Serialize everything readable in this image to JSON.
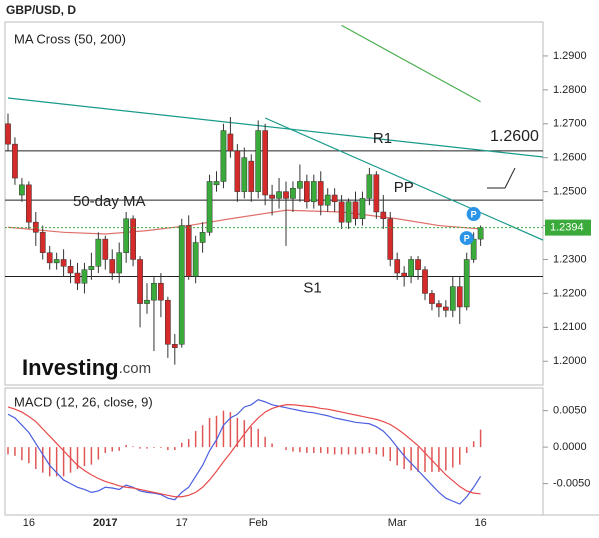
{
  "header": {
    "title": "GBP/USD, D"
  },
  "logo": {
    "name": "Investing",
    "suffix": ".com"
  },
  "chart_data": [
    {
      "type": "candlestick",
      "title": "MA Cross (50, 200)",
      "up_color": "#3aab3a",
      "down_color": "#d42a2a",
      "open": [
        1.27,
        1.264,
        1.249,
        1.252,
        1.241,
        1.238,
        1.232,
        1.229,
        1.23,
        1.228,
        1.226,
        1.223,
        1.227,
        1.228,
        1.236,
        1.23,
        1.226,
        1.232,
        1.242,
        1.23,
        1.217,
        1.218,
        1.223,
        1.218,
        1.205,
        1.205,
        1.24,
        1.225,
        1.235,
        1.238,
        1.252,
        1.253,
        1.267,
        1.262,
        1.25,
        1.259,
        1.25,
        1.268,
        1.249,
        1.248,
        1.25,
        1.248,
        1.251,
        1.253,
        1.247,
        1.253,
        1.246,
        1.249,
        1.247,
        1.241,
        1.247,
        1.242,
        1.248,
        1.255,
        1.244,
        1.242,
        1.23,
        1.226,
        1.225,
        1.23,
        1.227,
        1.22,
        1.217,
        1.216,
        1.215,
        1.222,
        1.216,
        1.23,
        1.236
      ],
      "high": [
        1.273,
        1.266,
        1.254,
        1.253,
        1.244,
        1.24,
        1.234,
        1.232,
        1.233,
        1.23,
        1.229,
        1.229,
        1.232,
        1.238,
        1.237,
        1.233,
        1.235,
        1.244,
        1.243,
        1.231,
        1.223,
        1.225,
        1.226,
        1.219,
        1.208,
        1.242,
        1.243,
        1.237,
        1.241,
        1.255,
        1.256,
        1.27,
        1.272,
        1.264,
        1.263,
        1.261,
        1.271,
        1.27,
        1.252,
        1.254,
        1.253,
        1.253,
        1.258,
        1.255,
        1.255,
        1.256,
        1.251,
        1.251,
        1.249,
        1.248,
        1.25,
        1.25,
        1.257,
        1.256,
        1.249,
        1.244,
        1.232,
        1.228,
        1.231,
        1.231,
        1.228,
        1.221,
        1.218,
        1.218,
        1.225,
        1.225,
        1.232,
        1.238,
        1.24
      ],
      "low": [
        1.262,
        1.252,
        1.247,
        1.239,
        1.234,
        1.23,
        1.227,
        1.227,
        1.225,
        1.223,
        1.221,
        1.22,
        1.224,
        1.226,
        1.227,
        1.224,
        1.223,
        1.229,
        1.228,
        1.21,
        1.214,
        1.203,
        1.213,
        1.201,
        1.199,
        1.204,
        1.224,
        1.223,
        1.232,
        1.237,
        1.25,
        1.251,
        1.26,
        1.247,
        1.248,
        1.247,
        1.248,
        1.246,
        1.243,
        1.245,
        1.234,
        1.244,
        1.247,
        1.245,
        1.245,
        1.243,
        1.244,
        1.244,
        1.239,
        1.239,
        1.24,
        1.24,
        1.246,
        1.242,
        1.239,
        1.228,
        1.224,
        1.222,
        1.223,
        1.224,
        1.218,
        1.215,
        1.213,
        1.213,
        1.213,
        1.211,
        1.215,
        1.229,
        1.234
      ],
      "close": [
        1.264,
        1.254,
        1.252,
        1.241,
        1.238,
        1.232,
        1.229,
        1.23,
        1.228,
        1.226,
        1.223,
        1.227,
        1.228,
        1.236,
        1.23,
        1.226,
        1.232,
        1.242,
        1.23,
        1.217,
        1.218,
        1.223,
        1.218,
        1.205,
        1.204,
        1.24,
        1.225,
        1.235,
        1.238,
        1.253,
        1.253,
        1.268,
        1.262,
        1.25,
        1.26,
        1.25,
        1.268,
        1.249,
        1.248,
        1.25,
        1.248,
        1.251,
        1.253,
        1.247,
        1.253,
        1.246,
        1.249,
        1.247,
        1.241,
        1.247,
        1.242,
        1.248,
        1.255,
        1.244,
        1.242,
        1.23,
        1.226,
        1.225,
        1.23,
        1.227,
        1.22,
        1.217,
        1.216,
        1.215,
        1.222,
        1.216,
        1.23,
        1.236,
        1.2394
      ],
      "lines": [
        {
          "color": "#e0706a",
          "x": [
            0,
            8,
            14,
            20,
            26,
            32,
            40,
            48,
            56,
            62,
            68
          ],
          "values": [
            1.2395,
            1.238,
            1.2375,
            1.2385,
            1.24,
            1.242,
            1.2445,
            1.244,
            1.242,
            1.24,
            1.239
          ]
        },
        {
          "color": "#4caf50",
          "x": [
            48,
            68
          ],
          "values": [
            1.299,
            1.2765
          ]
        },
        {
          "color": "#1a9a8a",
          "x": [
            0,
            77
          ],
          "values": [
            1.2776,
            1.2602
          ]
        },
        {
          "color": "#1a9a8a",
          "x": [
            37,
            77
          ],
          "values": [
            1.2717,
            1.2357
          ]
        }
      ],
      "levels": [
        {
          "label": "R1",
          "value": 1.262
        },
        {
          "label": "PP",
          "value": 1.2475
        },
        {
          "label": "S1",
          "value": 1.225
        }
      ],
      "annotations": [
        "50-day MA",
        "1.2600"
      ],
      "markers": [
        {
          "label": "P",
          "x": 67,
          "value": 1.2434
        },
        {
          "label": "P",
          "x": 66,
          "value": 1.2363
        }
      ],
      "ylim": [
        1.193,
        1.3
      ],
      "yticks": [
        {
          "value": 1.2,
          "label": "1.2000"
        },
        {
          "value": 1.21,
          "label": "1.2100"
        },
        {
          "value": 1.22,
          "label": "1.2200"
        },
        {
          "value": 1.23,
          "label": "1.2300"
        },
        {
          "value": 1.24,
          "label": "1.2400"
        },
        {
          "value": 1.25,
          "label": "1.2500"
        },
        {
          "value": 1.26,
          "label": "1.2600"
        },
        {
          "value": 1.27,
          "label": "1.2700"
        },
        {
          "value": 1.28,
          "label": "1.2800"
        },
        {
          "value": 1.29,
          "label": "1.2900"
        }
      ]
    },
    {
      "type": "macd",
      "title": "MACD (12, 26, close, 9)",
      "categories": [
        null,
        null,
        null,
        "16",
        null,
        null,
        null,
        null,
        null,
        null,
        null,
        null,
        null,
        null,
        "2017",
        null,
        null,
        null,
        null,
        null,
        null,
        null,
        null,
        null,
        null,
        "17",
        null,
        null,
        null,
        null,
        null,
        null,
        null,
        null,
        null,
        null,
        "Feb",
        null,
        null,
        null,
        null,
        null,
        null,
        null,
        null,
        null,
        null,
        null,
        null,
        null,
        null,
        null,
        null,
        null,
        null,
        null,
        "Mar",
        null,
        null,
        null,
        null,
        null,
        null,
        null,
        null,
        null,
        null,
        null,
        "16"
      ],
      "series": [
        {
          "color": "#4a5ee0",
          "values": [
            0.0045,
            0.004,
            0.003,
            0.002,
            0.0005,
            -0.001,
            -0.0025,
            -0.0035,
            -0.0045,
            -0.005,
            -0.0055,
            -0.0058,
            -0.0062,
            -0.006,
            -0.0055,
            -0.0056,
            -0.0058,
            -0.0052,
            -0.0055,
            -0.006,
            -0.0062,
            -0.0063,
            -0.0065,
            -0.007,
            -0.0072,
            -0.0062,
            -0.0055,
            -0.004,
            -0.0025,
            -0.0005,
            0.001,
            0.003,
            0.004,
            0.0045,
            0.0055,
            0.0058,
            0.0065,
            0.0062,
            0.0058,
            0.0056,
            0.0054,
            0.0052,
            0.005,
            0.0048,
            0.0047,
            0.0045,
            0.0043,
            0.004,
            0.0038,
            0.0036,
            0.0034,
            0.0033,
            0.0032,
            0.0028,
            0.0022,
            0.0012,
            0,
            -0.0012,
            -0.0022,
            -0.0032,
            -0.0042,
            -0.0052,
            -0.0062,
            -0.007,
            -0.0074,
            -0.0078,
            -0.0068,
            -0.0055,
            -0.004
          ]
        },
        {
          "color": "#e84a4a",
          "values": [
            0.0055,
            0.0052,
            0.0048,
            0.0042,
            0.0035,
            0.0025,
            0.0015,
            0.0005,
            -0.0005,
            -0.0015,
            -0.0025,
            -0.0032,
            -0.0038,
            -0.0043,
            -0.0047,
            -0.005,
            -0.0053,
            -0.0055,
            -0.0056,
            -0.0058,
            -0.006,
            -0.0062,
            -0.0064,
            -0.0066,
            -0.0068,
            -0.0068,
            -0.0066,
            -0.0062,
            -0.0055,
            -0.0045,
            -0.0033,
            -0.002,
            -0.0008,
            0.0005,
            0.0018,
            0.003,
            0.004,
            0.0048,
            0.0053,
            0.0056,
            0.0058,
            0.0058,
            0.0057,
            0.0056,
            0.0055,
            0.0053,
            0.0052,
            0.005,
            0.0048,
            0.0046,
            0.0044,
            0.0042,
            0.004,
            0.0038,
            0.0035,
            0.0031,
            0.0025,
            0.0018,
            0.001,
            0.0002,
            -0.0008,
            -0.0018,
            -0.0028,
            -0.0038,
            -0.0046,
            -0.0054,
            -0.006,
            -0.0063,
            -0.0064
          ]
        }
      ],
      "histogram": {
        "color": "#e05555",
        "values": [
          -0.001,
          -0.0012,
          -0.0018,
          -0.0022,
          -0.003,
          -0.0035,
          -0.004,
          -0.004,
          -0.004,
          -0.0035,
          -0.003,
          -0.0026,
          -0.0024,
          -0.0017,
          -0.0008,
          -0.0006,
          -0.0005,
          0.0003,
          0.0001,
          -0.0002,
          -0.0002,
          -0.0001,
          -0.0001,
          -0.0004,
          -0.0004,
          0.0006,
          0.0011,
          0.0022,
          0.003,
          0.004,
          0.0043,
          0.005,
          0.0048,
          0.004,
          0.0037,
          0.0028,
          0.0025,
          0.0014,
          0.0005,
          0,
          -0.0004,
          -0.0006,
          -0.0007,
          -0.0008,
          -0.0008,
          -0.0008,
          -0.0009,
          -0.001,
          -0.001,
          -0.001,
          -0.001,
          -0.0009,
          -0.0008,
          -0.001,
          -0.0013,
          -0.0019,
          -0.0025,
          -0.003,
          -0.0032,
          -0.0034,
          -0.0034,
          -0.0034,
          -0.0034,
          -0.0032,
          -0.0028,
          -0.0024,
          -0.0008,
          0.0008,
          0.0024
        ]
      },
      "ylim": [
        -0.0093,
        0.0081
      ],
      "yticks": [
        {
          "value": 0.005,
          "label": "0.0050"
        },
        {
          "value": 0,
          "label": "0.0000"
        },
        {
          "value": -0.005,
          "label": "-0.0050"
        }
      ]
    }
  ]
}
